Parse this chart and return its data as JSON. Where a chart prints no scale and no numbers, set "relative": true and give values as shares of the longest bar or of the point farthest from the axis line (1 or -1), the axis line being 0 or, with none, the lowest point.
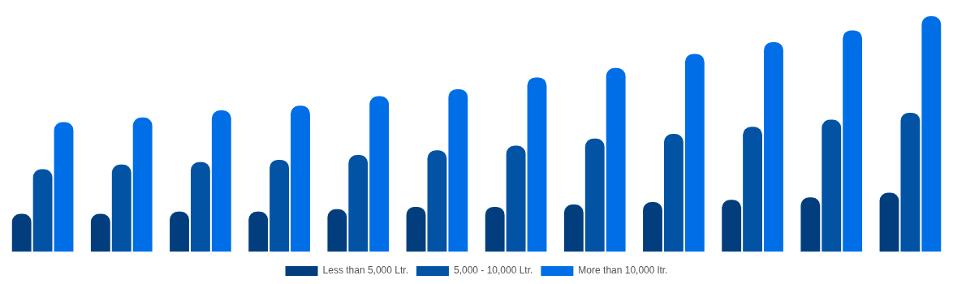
{
  "chart_data": {
    "type": "bar",
    "relative": true,
    "legend": "bottom",
    "categories": [
      null,
      null,
      null,
      null,
      null,
      null,
      null,
      null,
      null,
      null,
      null,
      null
    ],
    "series": [
      {
        "name": "Less than 5,000 Ltr.",
        "color": "#023e7d",
        "values": [
          0.16,
          0.16,
          0.17,
          0.17,
          0.18,
          0.19,
          0.19,
          0.2,
          0.21,
          0.22,
          0.23,
          0.25
        ]
      },
      {
        "name": "5,000 - 10,000 Ltr.",
        "color": "#0353a4",
        "values": [
          0.35,
          0.37,
          0.38,
          0.39,
          0.41,
          0.43,
          0.45,
          0.48,
          0.5,
          0.53,
          0.56,
          0.59
        ]
      },
      {
        "name": "More than 10,000 ltr.",
        "color": "#006ee6",
        "values": [
          0.55,
          0.57,
          0.6,
          0.62,
          0.66,
          0.69,
          0.74,
          0.78,
          0.84,
          0.89,
          0.94,
          1
        ]
      }
    ]
  }
}
